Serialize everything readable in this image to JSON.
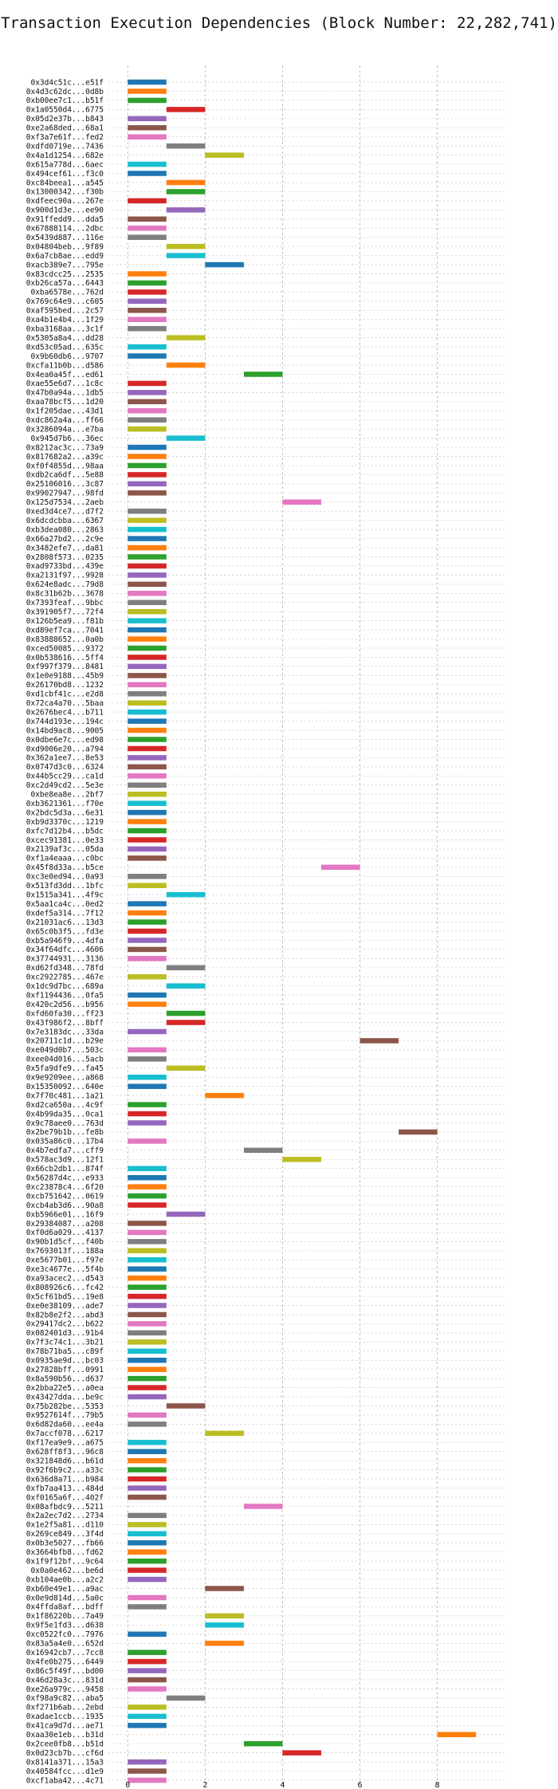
{
  "chart_data": {
    "type": "bar",
    "orientation": "horizontal-range",
    "title": "Transaction Execution Dependencies (Block Number: 22,282,741)",
    "xlabel": "",
    "ylabel": "",
    "xlim": [
      -0.5,
      9.8
    ],
    "x_ticks": [
      0,
      2,
      4,
      6,
      8
    ],
    "grid": true,
    "legend": "none",
    "palette": [
      "#1f77b4",
      "#ff7f0e",
      "#2ca02c",
      "#d62728",
      "#9467bd",
      "#8c564b",
      "#e377c2",
      "#7f7f7f",
      "#bcbd22",
      "#17becf"
    ],
    "transactions": [
      {
        "label": "0x3d4c51c...e51f",
        "start": 0,
        "end": 1
      },
      {
        "label": "0x4d3c62dc...0d8b",
        "start": 0,
        "end": 1
      },
      {
        "label": "0xb00ee7c1...b51f",
        "start": 0,
        "end": 1
      },
      {
        "label": "0x1a0550d4...6775",
        "start": 1,
        "end": 2
      },
      {
        "label": "0x05d2e37b...b843",
        "start": 0,
        "end": 1
      },
      {
        "label": "0xe2a68ded...68a1",
        "start": 0,
        "end": 1
      },
      {
        "label": "0xf3a7e61f...fed2",
        "start": 0,
        "end": 1
      },
      {
        "label": "0xdfd0719e...7436",
        "start": 1,
        "end": 2
      },
      {
        "label": "0x4a1d1254...682e",
        "start": 2,
        "end": 3
      },
      {
        "label": "0x615a778d...6aec",
        "start": 0,
        "end": 1
      },
      {
        "label": "0x494cef61...f3c0",
        "start": 0,
        "end": 1
      },
      {
        "label": "0xc84beea1...a545",
        "start": 1,
        "end": 2
      },
      {
        "label": "0x13000342...f30b",
        "start": 1,
        "end": 2
      },
      {
        "label": "0xdfeec90a...267e",
        "start": 0,
        "end": 1
      },
      {
        "label": "0x900d1d3e...ee90",
        "start": 1,
        "end": 2
      },
      {
        "label": "0x91ffedd9...dda5",
        "start": 0,
        "end": 1
      },
      {
        "label": "0x67888114...2dbc",
        "start": 0,
        "end": 1
      },
      {
        "label": "0x5439d887...116e",
        "start": 0,
        "end": 1
      },
      {
        "label": "0x04804beb...9f89",
        "start": 1,
        "end": 2
      },
      {
        "label": "0x6a7cb8ae...edd9",
        "start": 1,
        "end": 2
      },
      {
        "label": "0xacb389e7...795e",
        "start": 2,
        "end": 3
      },
      {
        "label": "0x83cdcc25...2535",
        "start": 0,
        "end": 1
      },
      {
        "label": "0xb26ca57a...6443",
        "start": 0,
        "end": 1
      },
      {
        "label": "0xba6578e...762d",
        "start": 0,
        "end": 1
      },
      {
        "label": "0x769c64e9...c605",
        "start": 0,
        "end": 1
      },
      {
        "label": "0xaf595bed...2c57",
        "start": 0,
        "end": 1
      },
      {
        "label": "0xa4b1e4b4...1f29",
        "start": 0,
        "end": 1
      },
      {
        "label": "0xba3168aa...3c1f",
        "start": 0,
        "end": 1
      },
      {
        "label": "0x5305a8a4...dd28",
        "start": 1,
        "end": 2
      },
      {
        "label": "0xd53c05ad...635c",
        "start": 0,
        "end": 1
      },
      {
        "label": "0x9b60db6...9707",
        "start": 0,
        "end": 1
      },
      {
        "label": "0xcfa11b0b...d586",
        "start": 1,
        "end": 2
      },
      {
        "label": "0x4ea0a45f...ed61",
        "start": 3,
        "end": 4
      },
      {
        "label": "0xae55e6d7...1c8c",
        "start": 0,
        "end": 1
      },
      {
        "label": "0x47b0a94a...1db5",
        "start": 0,
        "end": 1
      },
      {
        "label": "0xaa78bcf5...1d20",
        "start": 0,
        "end": 1
      },
      {
        "label": "0x1f205dae...43d1",
        "start": 0,
        "end": 1
      },
      {
        "label": "0xdc862a4a...ff66",
        "start": 0,
        "end": 1
      },
      {
        "label": "0x3286094a...e7ba",
        "start": 0,
        "end": 1
      },
      {
        "label": "0x945d7b6...36ec",
        "start": 1,
        "end": 2
      },
      {
        "label": "0x8212ac3c...73a9",
        "start": 0,
        "end": 1
      },
      {
        "label": "0x817682a2...a39c",
        "start": 0,
        "end": 1
      },
      {
        "label": "0xf0f4855d...98aa",
        "start": 0,
        "end": 1
      },
      {
        "label": "0xdb2ca6df...5e88",
        "start": 0,
        "end": 1
      },
      {
        "label": "0x25106016...3c87",
        "start": 0,
        "end": 1
      },
      {
        "label": "0x99027947...98fd",
        "start": 0,
        "end": 1
      },
      {
        "label": "0x125d7534...2aeb",
        "start": 4,
        "end": 5
      },
      {
        "label": "0xed3d4ce7...d7f2",
        "start": 0,
        "end": 1
      },
      {
        "label": "0x6dcdcbba...6367",
        "start": 0,
        "end": 1
      },
      {
        "label": "0xb3dea080...2863",
        "start": 0,
        "end": 1
      },
      {
        "label": "0x66a27bd2...2c9e",
        "start": 0,
        "end": 1
      },
      {
        "label": "0x3482efe7...da81",
        "start": 0,
        "end": 1
      },
      {
        "label": "0x2808f573...0235",
        "start": 0,
        "end": 1
      },
      {
        "label": "0xad9733bd...439e",
        "start": 0,
        "end": 1
      },
      {
        "label": "0xa2131f97...9928",
        "start": 0,
        "end": 1
      },
      {
        "label": "0x624e8adc...79d8",
        "start": 0,
        "end": 1
      },
      {
        "label": "0x8c31b62b...3678",
        "start": 0,
        "end": 1
      },
      {
        "label": "0x7393feaf...9bbc",
        "start": 0,
        "end": 1
      },
      {
        "label": "0x391905f7...72f4",
        "start": 0,
        "end": 1
      },
      {
        "label": "0x126b5ea9...f81b",
        "start": 0,
        "end": 1
      },
      {
        "label": "0xd89ef7ca...7041",
        "start": 0,
        "end": 1
      },
      {
        "label": "0x83888652...0a0b",
        "start": 0,
        "end": 1
      },
      {
        "label": "0xced50085...9372",
        "start": 0,
        "end": 1
      },
      {
        "label": "0x0b538616...5ff4",
        "start": 0,
        "end": 1
      },
      {
        "label": "0xf997f379...8481",
        "start": 0,
        "end": 1
      },
      {
        "label": "0x1e0e9188...45b9",
        "start": 0,
        "end": 1
      },
      {
        "label": "0x26170bd8...1232",
        "start": 0,
        "end": 1
      },
      {
        "label": "0xd1cbf41c...e2d8",
        "start": 0,
        "end": 1
      },
      {
        "label": "0x72ca4a70...5baa",
        "start": 0,
        "end": 1
      },
      {
        "label": "0x2676bec4...b711",
        "start": 0,
        "end": 1
      },
      {
        "label": "0x744d193e...194c",
        "start": 0,
        "end": 1
      },
      {
        "label": "0x14bd9ac8...9005",
        "start": 0,
        "end": 1
      },
      {
        "label": "0x0dbe6e7c...ed98",
        "start": 0,
        "end": 1
      },
      {
        "label": "0xd9006e20...a794",
        "start": 0,
        "end": 1
      },
      {
        "label": "0x362a1ee7...8e53",
        "start": 0,
        "end": 1
      },
      {
        "label": "0x0747d3c0...6324",
        "start": 0,
        "end": 1
      },
      {
        "label": "0x44b5cc29...ca1d",
        "start": 0,
        "end": 1
      },
      {
        "label": "0xc2d49cd2...5e3e",
        "start": 0,
        "end": 1
      },
      {
        "label": "0xbe8ea8e...2bf7",
        "start": 0,
        "end": 1
      },
      {
        "label": "0xb3621361...f70e",
        "start": 0,
        "end": 1
      },
      {
        "label": "0x2bdc5d3a...6e31",
        "start": 0,
        "end": 1
      },
      {
        "label": "0xb9d3370c...1219",
        "start": 0,
        "end": 1
      },
      {
        "label": "0xfc7d12b4...b5dc",
        "start": 0,
        "end": 1
      },
      {
        "label": "0xcec91381...0e33",
        "start": 0,
        "end": 1
      },
      {
        "label": "0x2139af3c...05da",
        "start": 0,
        "end": 1
      },
      {
        "label": "0xf1a4eaaa...c0bc",
        "start": 0,
        "end": 1
      },
      {
        "label": "0x45f8d33a...b5ce",
        "start": 5,
        "end": 6
      },
      {
        "label": "0xc3e0ed94...0a93",
        "start": 0,
        "end": 1
      },
      {
        "label": "0x513fd3dd...1bfc",
        "start": 0,
        "end": 1
      },
      {
        "label": "0x1515a341...4f9c",
        "start": 1,
        "end": 2
      },
      {
        "label": "0x5aa1ca4c...0ed2",
        "start": 0,
        "end": 1
      },
      {
        "label": "0xdef5a314...7f12",
        "start": 0,
        "end": 1
      },
      {
        "label": "0x21031ac6...13d3",
        "start": 0,
        "end": 1
      },
      {
        "label": "0x65c0b3f5...fd3e",
        "start": 0,
        "end": 1
      },
      {
        "label": "0xb5a946f9...4dfa",
        "start": 0,
        "end": 1
      },
      {
        "label": "0x34f64dfc...4606",
        "start": 0,
        "end": 1
      },
      {
        "label": "0x37744931...3136",
        "start": 0,
        "end": 1
      },
      {
        "label": "0xd62fd348...78fd",
        "start": 1,
        "end": 2
      },
      {
        "label": "0xc2922785...467e",
        "start": 0,
        "end": 1
      },
      {
        "label": "0x1dc9d7bc...689a",
        "start": 1,
        "end": 2
      },
      {
        "label": "0xf1194436...0fa5",
        "start": 0,
        "end": 1
      },
      {
        "label": "0x420c2d56...b956",
        "start": 0,
        "end": 1
      },
      {
        "label": "0xfd60fa30...ff23",
        "start": 1,
        "end": 2
      },
      {
        "label": "0x43f986f2...8bff",
        "start": 1,
        "end": 2
      },
      {
        "label": "0x7e3183dc...33da",
        "start": 0,
        "end": 1
      },
      {
        "label": "0x20711c1d...b29e",
        "start": 6,
        "end": 7
      },
      {
        "label": "0xe049d0b7...503c",
        "start": 0,
        "end": 1
      },
      {
        "label": "0xee04d016...5acb",
        "start": 0,
        "end": 1
      },
      {
        "label": "0x5fa9dfe9...fa45",
        "start": 1,
        "end": 2
      },
      {
        "label": "0x9e9209ee...a868",
        "start": 0,
        "end": 1
      },
      {
        "label": "0x15350092...640e",
        "start": 0,
        "end": 1
      },
      {
        "label": "0x7f70c481...1a21",
        "start": 2,
        "end": 3
      },
      {
        "label": "0xd2ca650a...4c9f",
        "start": 0,
        "end": 1
      },
      {
        "label": "0x4b99da35...0ca1",
        "start": 0,
        "end": 1
      },
      {
        "label": "0x9c78aee0...763d",
        "start": 0,
        "end": 1
      },
      {
        "label": "0x2be79b1b...fe8b",
        "start": 7,
        "end": 8
      },
      {
        "label": "0x035a86c0...17b4",
        "start": 0,
        "end": 1
      },
      {
        "label": "0x4b7edfa7...cff9",
        "start": 3,
        "end": 4
      },
      {
        "label": "0x578ac3d9...12f1",
        "start": 4,
        "end": 5
      },
      {
        "label": "0x66cb2db1...874f",
        "start": 0,
        "end": 1
      },
      {
        "label": "0x56287d4c...e933",
        "start": 0,
        "end": 1
      },
      {
        "label": "0xc23878c4...6f20",
        "start": 0,
        "end": 1
      },
      {
        "label": "0xcb751642...0619",
        "start": 0,
        "end": 1
      },
      {
        "label": "0xcb4ab3d6...90a8",
        "start": 0,
        "end": 1
      },
      {
        "label": "0xb5966e01...16f9",
        "start": 1,
        "end": 2
      },
      {
        "label": "0x29384087...a208",
        "start": 0,
        "end": 1
      },
      {
        "label": "0xf0d6a029...4137",
        "start": 0,
        "end": 1
      },
      {
        "label": "0x90b1d5cf...f40b",
        "start": 0,
        "end": 1
      },
      {
        "label": "0x7693013f...188a",
        "start": 0,
        "end": 1
      },
      {
        "label": "0xe5677b01...f97e",
        "start": 0,
        "end": 1
      },
      {
        "label": "0xe3c4677e...5f4b",
        "start": 0,
        "end": 1
      },
      {
        "label": "0xa93acec2...d543",
        "start": 0,
        "end": 1
      },
      {
        "label": "0x808926c6...fc42",
        "start": 0,
        "end": 1
      },
      {
        "label": "0x5cf61bd5...19e8",
        "start": 0,
        "end": 1
      },
      {
        "label": "0xe0e38109...ade7",
        "start": 0,
        "end": 1
      },
      {
        "label": "0x82b8e2f2...abd3",
        "start": 0,
        "end": 1
      },
      {
        "label": "0x29417dc2...b622",
        "start": 0,
        "end": 1
      },
      {
        "label": "0x082401d3...91b4",
        "start": 0,
        "end": 1
      },
      {
        "label": "0x7f3c74c1...3b21",
        "start": 0,
        "end": 1
      },
      {
        "label": "0x78b71ba5...c89f",
        "start": 0,
        "end": 1
      },
      {
        "label": "0x0935ae9d...bc03",
        "start": 0,
        "end": 1
      },
      {
        "label": "0x27828bff...0991",
        "start": 0,
        "end": 1
      },
      {
        "label": "0x8a590b56...d637",
        "start": 0,
        "end": 1
      },
      {
        "label": "0x2bba22e5...a0ea",
        "start": 0,
        "end": 1
      },
      {
        "label": "0x43427dda...be9c",
        "start": 0,
        "end": 1
      },
      {
        "label": "0x75b282be...5353",
        "start": 1,
        "end": 2
      },
      {
        "label": "0x9527614f...79b5",
        "start": 0,
        "end": 1
      },
      {
        "label": "0x6d82da60...ee4a",
        "start": 0,
        "end": 1
      },
      {
        "label": "0x7accf078...6217",
        "start": 2,
        "end": 3
      },
      {
        "label": "0xf17ea9e9...a675",
        "start": 0,
        "end": 1
      },
      {
        "label": "0x628ff8f3...96c8",
        "start": 0,
        "end": 1
      },
      {
        "label": "0x321848d6...b61d",
        "start": 0,
        "end": 1
      },
      {
        "label": "0x92f6b9c2...a33c",
        "start": 0,
        "end": 1
      },
      {
        "label": "0x636d8a71...b984",
        "start": 0,
        "end": 1
      },
      {
        "label": "0xfb7aa413...484d",
        "start": 0,
        "end": 1
      },
      {
        "label": "0xf0165a6f...402f",
        "start": 0,
        "end": 1
      },
      {
        "label": "0x08afbdc9...5211",
        "start": 3,
        "end": 4
      },
      {
        "label": "0x2a2ec7d2...2734",
        "start": 0,
        "end": 1
      },
      {
        "label": "0x1e2f5a81...d110",
        "start": 0,
        "end": 1
      },
      {
        "label": "0x269ce849...3f4d",
        "start": 0,
        "end": 1
      },
      {
        "label": "0x0b3e5027...fb66",
        "start": 0,
        "end": 1
      },
      {
        "label": "0x3664bfb8...fd62",
        "start": 0,
        "end": 1
      },
      {
        "label": "0x1f9f12bf...9c64",
        "start": 0,
        "end": 1
      },
      {
        "label": "0x0a0e462...be6d",
        "start": 0,
        "end": 1
      },
      {
        "label": "0xb104ae0b...a2c2",
        "start": 0,
        "end": 1
      },
      {
        "label": "0xb60e49e1...a9ac",
        "start": 2,
        "end": 3
      },
      {
        "label": "0x0e9d814d...5a0c",
        "start": 0,
        "end": 1
      },
      {
        "label": "0x4ffda8af...bdff",
        "start": 0,
        "end": 1
      },
      {
        "label": "0x1f86220b...7a49",
        "start": 2,
        "end": 3
      },
      {
        "label": "0x9f5e1fd3...d638",
        "start": 2,
        "end": 3
      },
      {
        "label": "0xc0522fc0...7976",
        "start": 0,
        "end": 1
      },
      {
        "label": "0x83a5a4e0...652d",
        "start": 2,
        "end": 3
      },
      {
        "label": "0x16942cb7...7cc8",
        "start": 0,
        "end": 1
      },
      {
        "label": "0x4fe0b275...6449",
        "start": 0,
        "end": 1
      },
      {
        "label": "0x86c5f49f...bd00",
        "start": 0,
        "end": 1
      },
      {
        "label": "0x46d28a3c...831d",
        "start": 0,
        "end": 1
      },
      {
        "label": "0xe26a979c...9458",
        "start": 0,
        "end": 1
      },
      {
        "label": "0xf98a9c82...aba5",
        "start": 1,
        "end": 2
      },
      {
        "label": "0xf271b6ab...2ebd",
        "start": 0,
        "end": 1
      },
      {
        "label": "0xadae1ccb...1935",
        "start": 0,
        "end": 1
      },
      {
        "label": "0x41ca9d7d...ae71",
        "start": 0,
        "end": 1
      },
      {
        "label": "0xaa30e1eb...b31d",
        "start": 8,
        "end": 9
      },
      {
        "label": "0x2cee0fb8...b51d",
        "start": 3,
        "end": 4
      },
      {
        "label": "0x0d23cb7b...cf6d",
        "start": 4,
        "end": 5
      },
      {
        "label": "0x8141a371...15a3",
        "start": 0,
        "end": 1
      },
      {
        "label": "0x40584fcc...d1e9",
        "start": 0,
        "end": 1
      },
      {
        "label": "0xcf1aba42...4c71",
        "start": 0,
        "end": 1
      }
    ]
  }
}
